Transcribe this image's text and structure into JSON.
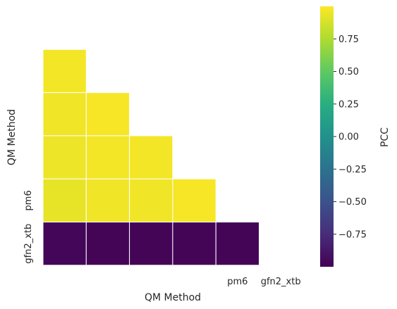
{
  "chart_data": {
    "type": "heatmap",
    "mask": "upper-triangle",
    "xlabel": "QM Method",
    "ylabel": "QM Method",
    "row_labels": [
      "",
      "",
      "",
      "",
      "pm6",
      "gfn2_xtb"
    ],
    "col_labels": [
      "",
      "",
      "",
      "",
      "pm6",
      "gfn2_xtb"
    ],
    "values": [
      [
        null,
        null,
        null,
        null,
        null,
        null
      ],
      [
        0.97,
        null,
        null,
        null,
        null,
        null
      ],
      [
        0.96,
        0.98,
        null,
        null,
        null,
        null
      ],
      [
        0.95,
        0.97,
        0.97,
        null,
        null,
        null
      ],
      [
        0.93,
        0.96,
        0.96,
        0.98,
        null,
        null
      ],
      [
        -0.97,
        -0.98,
        -0.98,
        -0.98,
        -0.98,
        null
      ]
    ],
    "colorbar": {
      "label": "PCC",
      "range": [
        -1.0,
        1.0
      ],
      "ticks": [
        0.75,
        0.5,
        0.25,
        0.0,
        -0.25,
        -0.5,
        -0.75
      ],
      "tick_labels": [
        "0.75",
        "0.50",
        "0.25",
        "0.00",
        "−0.25",
        "−0.50",
        "−0.75"
      ],
      "colormap": "viridis"
    },
    "grid": false,
    "cell_border_color": "#ffffff"
  }
}
